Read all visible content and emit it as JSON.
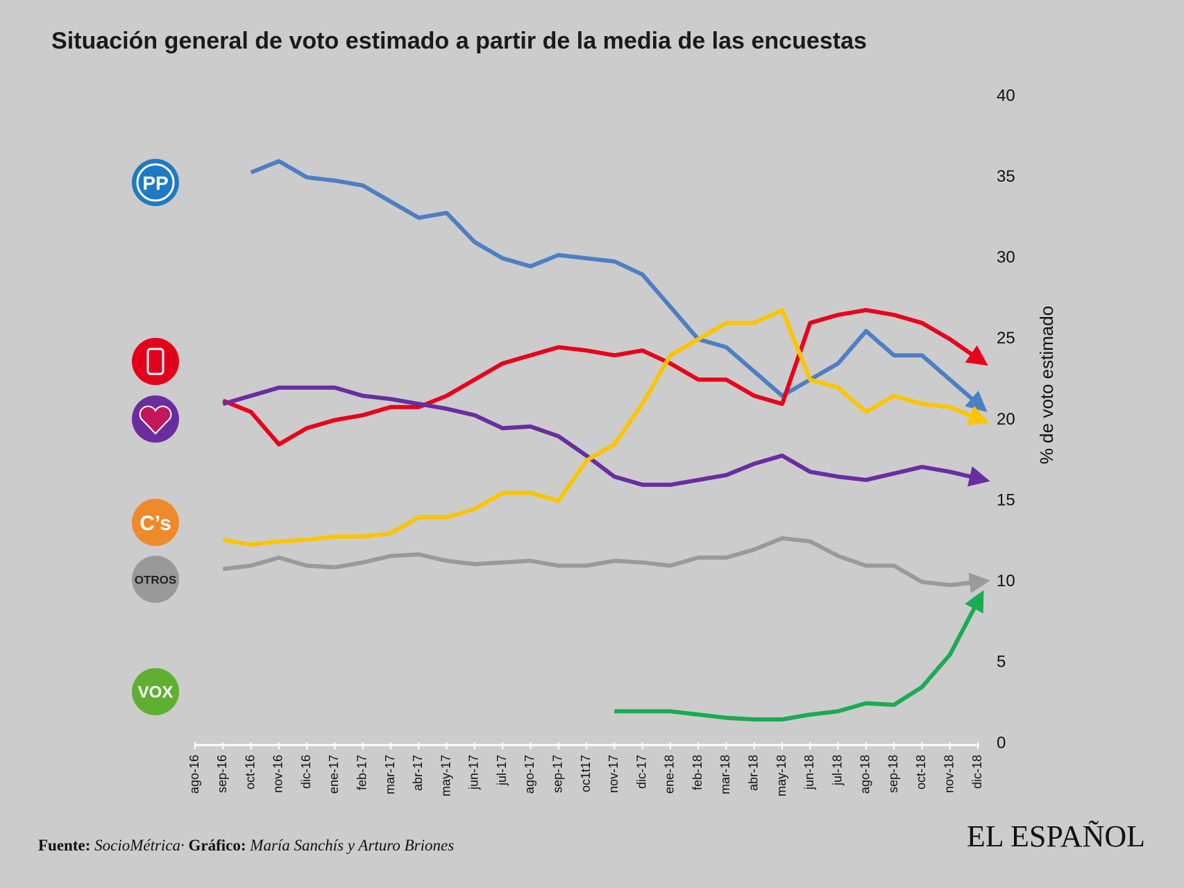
{
  "chart_data": {
    "type": "line",
    "title": "Situación general de voto estimado a partir de la media de las encuestas",
    "y_label": "% de voto estimado",
    "categories": [
      "ago-16",
      "sep-16",
      "oct-16",
      "nov-16",
      "dic-16",
      "ene-17",
      "feb-17",
      "mar-17",
      "abr-17",
      "may-17",
      "jun-17",
      "jul-17",
      "ago-17",
      "sep-17",
      "oc1t17",
      "nov-17",
      "dic-17",
      "ene-18",
      "feb-18",
      "mar-18",
      "abr-18",
      "may-18",
      "jun-18",
      "jul-18",
      "ago-18",
      "sep-18",
      "oct-18",
      "nov-18",
      "dic-18"
    ],
    "ylim": [
      0,
      40
    ],
    "yticks": [
      0,
      5,
      10,
      15,
      20,
      25,
      30,
      35,
      40
    ],
    "series": [
      {
        "name": "PP",
        "color": "#4d7fc4",
        "values": [
          null,
          null,
          35.3,
          36,
          35,
          34.8,
          34.5,
          33.5,
          32.5,
          32.8,
          31,
          30,
          29.5,
          30.2,
          30,
          29.8,
          29,
          27,
          25,
          24.5,
          23,
          21.5,
          22.5,
          23.5,
          25.5,
          24,
          24,
          22.5,
          21
        ]
      },
      {
        "color": "#e8001c",
        "values": [
          null,
          21.2,
          20.5,
          18.5,
          19.5,
          20,
          20.3,
          20.8,
          20.8,
          21.5,
          22.5,
          23.5,
          24,
          24.5,
          24.3,
          24,
          24.3,
          23.5,
          22.5,
          22.5,
          21.5,
          21,
          26,
          26.5,
          26.8,
          26.5,
          26,
          25,
          23.8
        ]
      },
      {
        "color": "#6a2da0",
        "values": [
          null,
          21,
          21.5,
          22,
          22,
          22,
          21.5,
          21.3,
          21,
          20.7,
          20.3,
          19.5,
          19.6,
          19,
          17.8,
          16.5,
          16,
          16,
          16.3,
          16.6,
          17.3,
          17.8,
          16.8,
          16.5,
          16.3,
          16.7,
          17.1,
          16.8,
          16.4
        ]
      },
      {
        "name": "C’s",
        "color": "#fdc400",
        "values": [
          null,
          12.6,
          12.3,
          12.5,
          12.6,
          12.8,
          12.8,
          13,
          14,
          14,
          14.5,
          15.5,
          15.5,
          15,
          17.5,
          18.5,
          21,
          24,
          25,
          26,
          26,
          26.8,
          22.5,
          22,
          20.5,
          21.5,
          21,
          20.8,
          20.1
        ]
      },
      {
        "name": "OTROS",
        "color": "#9a9a9a",
        "values": [
          null,
          10.8,
          11,
          11.5,
          11,
          10.9,
          11.2,
          11.6,
          11.7,
          11.3,
          11.1,
          11.2,
          11.3,
          11,
          11,
          11.3,
          11.2,
          11,
          11.5,
          11.5,
          12,
          12.7,
          12.5,
          11.6,
          11,
          11,
          10,
          9.8,
          10
        ]
      },
      {
        "name": "VOX",
        "color": "#1aab53",
        "values": [
          null,
          null,
          null,
          null,
          null,
          null,
          null,
          null,
          null,
          null,
          null,
          null,
          null,
          null,
          null,
          2,
          2,
          2,
          1.8,
          1.6,
          1.5,
          1.5,
          1.8,
          2,
          2.5,
          2.4,
          3.5,
          5.5,
          8.8
        ]
      }
    ]
  },
  "footer": {
    "source_label": "Fuente:",
    "source": "SocioMétrica·",
    "credit_label": "Gráfico:",
    "credit": "María Sanchís y Arturo Briones",
    "brand": "EL ESPAÑOL"
  }
}
